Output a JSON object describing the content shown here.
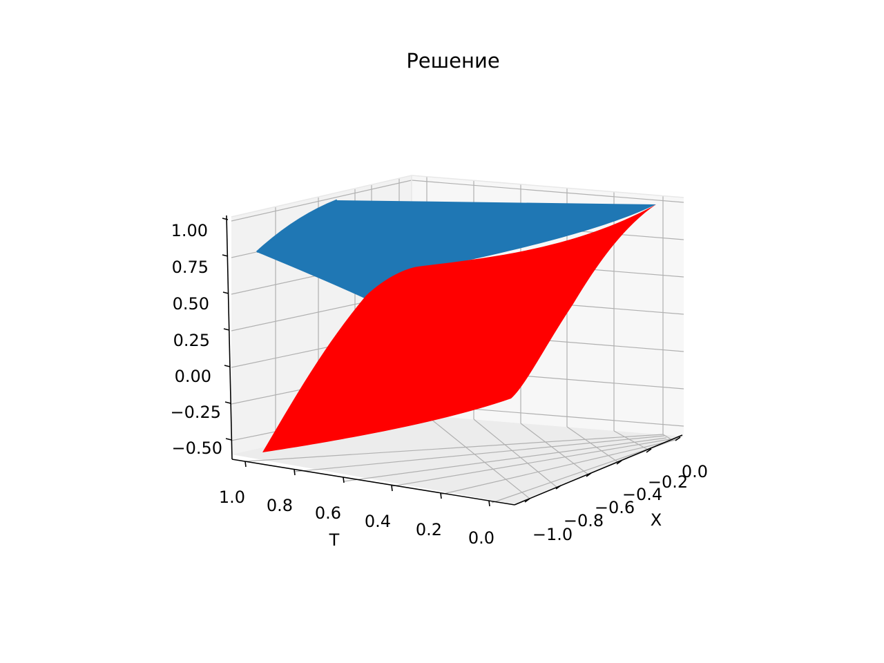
{
  "chart_data": {
    "type": "surface3d",
    "title": "Решение",
    "xlabel": "X",
    "tlabel": "T",
    "zlabel": "",
    "x_ticks": [
      "−1.0",
      "−0.8",
      "−0.6",
      "−0.4",
      "−0.2",
      "0.0"
    ],
    "t_ticks": [
      "1.0",
      "0.8",
      "0.6",
      "0.4",
      "0.2",
      "0.0"
    ],
    "z_ticks": [
      "1.00",
      "0.75",
      "0.50",
      "0.25",
      "0.00",
      "−0.25",
      "−0.50"
    ],
    "x_range": [
      -1.0,
      0.0
    ],
    "t_range": [
      0.0,
      1.0
    ],
    "z_range": [
      -0.55,
      1.05
    ],
    "grid": true,
    "series": [
      {
        "name": "",
        "color": "#1f77b4",
        "corner_values": {
          "x_-1_t_0": 1.0,
          "x_0_t_0": 1.0,
          "x_-1_t_1": 0.75,
          "x_0_t_1": 1.0
        }
      },
      {
        "name": "",
        "color": "#ff0000",
        "corner_values": {
          "x_-1_t_0": -0.1,
          "x_0_t_0": 1.0,
          "x_-1_t_1": -0.55,
          "x_0_t_1": 0.6
        }
      }
    ]
  }
}
